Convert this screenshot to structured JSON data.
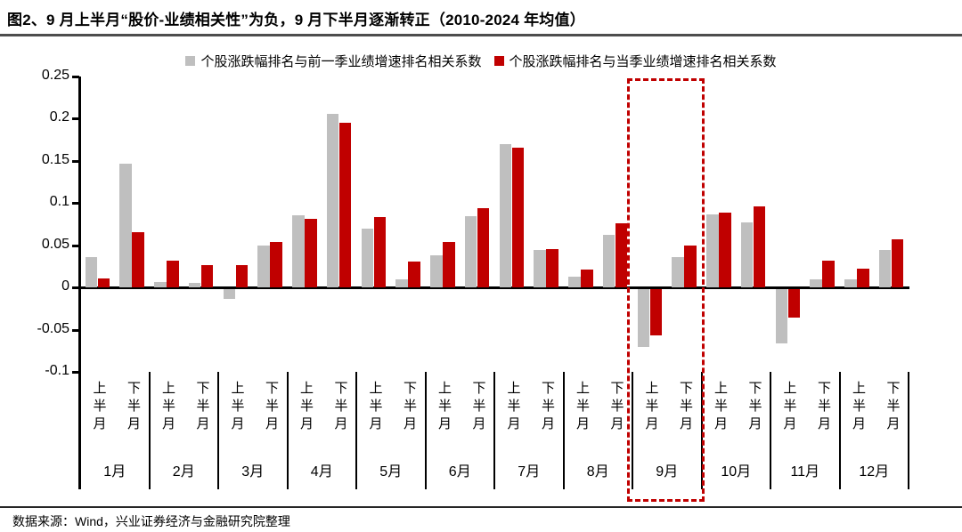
{
  "title": "图2、9 月上半月“股价-业绩相关性”为负，9 月下半月逐渐转正（2010-2024 年均值）",
  "footer": {
    "source": "数据来源：Wind，兴业证券经济与金融研究院整理"
  },
  "legend": [
    {
      "label": "个股涨跌幅排名与前一季业绩增速排名相关系数",
      "color": "#bfbfbf"
    },
    {
      "label": "个股涨跌幅排名与当季业绩增速排名相关系数",
      "color": "#c00000"
    }
  ],
  "chart_data": {
    "type": "bar",
    "title": "图2、9 月上半月“股价-业绩相关性”为负，9 月下半月逐渐转正（2010-2024 年均值）",
    "months": [
      "1月",
      "2月",
      "3月",
      "4月",
      "5月",
      "6月",
      "7月",
      "8月",
      "9月",
      "10月",
      "11月",
      "12月"
    ],
    "halves": [
      "上半月",
      "下半月"
    ],
    "categories": [
      "1月上半月",
      "1月下半月",
      "2月上半月",
      "2月下半月",
      "3月上半月",
      "3月下半月",
      "4月上半月",
      "4月下半月",
      "5月上半月",
      "5月下半月",
      "6月上半月",
      "6月下半月",
      "7月上半月",
      "7月下半月",
      "8月上半月",
      "8月下半月",
      "9月上半月",
      "9月下半月",
      "10月上半月",
      "10月下半月",
      "11月上半月",
      "11月下半月",
      "12月上半月",
      "12月下半月"
    ],
    "series": [
      {
        "name": "个股涨跌幅排名与前一季业绩增速排名相关系数",
        "color": "#bfbfbf",
        "values": [
          0.036,
          0.146,
          0.006,
          0.005,
          -0.012,
          0.049,
          0.085,
          0.205,
          0.069,
          0.01,
          0.038,
          0.084,
          0.17,
          0.044,
          0.013,
          0.062,
          -0.068,
          0.036,
          0.086,
          0.077,
          -0.064,
          0.01,
          0.01,
          0.044
        ]
      },
      {
        "name": "个股涨跌幅排名与当季业绩增速排名相关系数",
        "color": "#c00000",
        "values": [
          0.011,
          0.065,
          0.032,
          0.026,
          0.026,
          0.054,
          0.081,
          0.195,
          0.083,
          0.031,
          0.054,
          0.094,
          0.165,
          0.045,
          0.021,
          0.076,
          -0.055,
          0.05,
          0.088,
          0.096,
          -0.034,
          0.032,
          0.022,
          0.057
        ]
      }
    ],
    "ylim": [
      -0.1,
      0.25
    ],
    "yticks": [
      0.25,
      0.2,
      0.15,
      0.1,
      0.05,
      0,
      -0.05,
      -0.1
    ],
    "ytick_labels": [
      "0.25",
      "0.2",
      "0.15",
      "0.1",
      "0.05",
      "0",
      "-0.05",
      "-0.1"
    ],
    "grid": false,
    "legend_position": "top",
    "highlight": {
      "month": "9月",
      "month_index": 8,
      "color": "#c00000",
      "style": "dashed-box"
    }
  }
}
